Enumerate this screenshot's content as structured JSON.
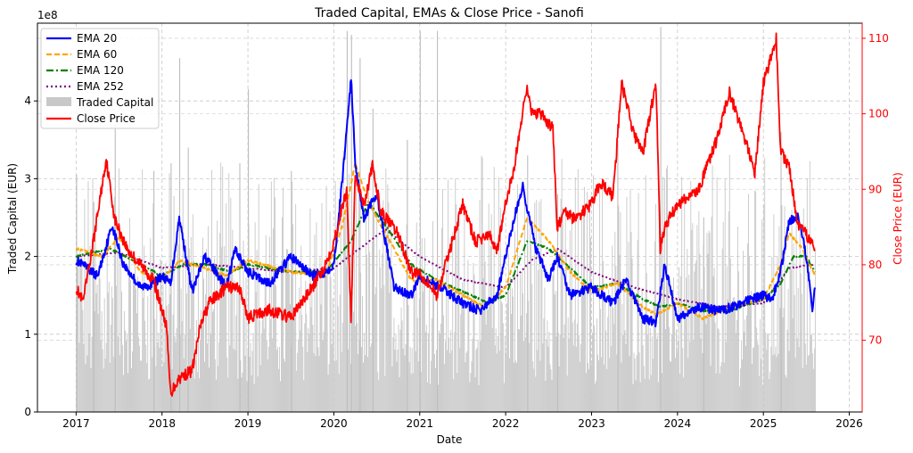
{
  "chart_data": {
    "type": "line",
    "title": "Traded Capital, EMAs & Close Price - Sanofi",
    "xlabel": "Date",
    "ylabel_left": "Traded Capital (EUR)",
    "ylabel_right": "Close Price (EUR)",
    "left_scale_label": "1e8",
    "x_range": [
      2016.55,
      2026.15
    ],
    "left_ylim": [
      0,
      5.0
    ],
    "right_ylim": [
      60.5,
      112
    ],
    "x_ticks": [
      {
        "v": 2017,
        "label": "2017"
      },
      {
        "v": 2018,
        "label": "2018"
      },
      {
        "v": 2019,
        "label": "2019"
      },
      {
        "v": 2020,
        "label": "2020"
      },
      {
        "v": 2021,
        "label": "2021"
      },
      {
        "v": 2022,
        "label": "2022"
      },
      {
        "v": 2023,
        "label": "2023"
      },
      {
        "v": 2024,
        "label": "2024"
      },
      {
        "v": 2025,
        "label": "2025"
      },
      {
        "v": 2026,
        "label": "2026"
      }
    ],
    "left_ticks": [
      {
        "v": 0,
        "label": "0"
      },
      {
        "v": 1,
        "label": "1"
      },
      {
        "v": 2,
        "label": "2"
      },
      {
        "v": 3,
        "label": "3"
      },
      {
        "v": 4,
        "label": "4"
      }
    ],
    "right_ticks": [
      {
        "v": 70,
        "label": "70"
      },
      {
        "v": 80,
        "label": "80"
      },
      {
        "v": 90,
        "label": "90"
      },
      {
        "v": 100,
        "label": "100"
      },
      {
        "v": 110,
        "label": "110"
      }
    ],
    "grid": true,
    "legend_position": "top-left",
    "colors": {
      "ema20": "#0000ff",
      "ema60": "#ffa500",
      "ema120": "#008000",
      "ema252": "#800080",
      "traded": "#c8c8c8",
      "close": "#ff0000",
      "right_axis": "#ff0000"
    },
    "series": [
      {
        "key": "ema20",
        "name": "EMA 20",
        "axis": "left",
        "style": "solid",
        "x": [
          2017.0,
          2017.25,
          2017.42,
          2017.55,
          2017.75,
          2017.9,
          2018.0,
          2018.1,
          2018.2,
          2018.35,
          2018.5,
          2018.75,
          2018.85,
          2019.0,
          2019.25,
          2019.5,
          2019.75,
          2019.9,
          2020.0,
          2020.1,
          2020.2,
          2020.25,
          2020.35,
          2020.5,
          2020.7,
          2020.9,
          2021.0,
          2021.25,
          2021.5,
          2021.7,
          2021.9,
          2022.0,
          2022.1,
          2022.2,
          2022.35,
          2022.5,
          2022.6,
          2022.75,
          2023.0,
          2023.25,
          2023.4,
          2023.6,
          2023.75,
          2023.85,
          2024.0,
          2024.25,
          2024.5,
          2024.75,
          2025.0,
          2025.1,
          2025.2,
          2025.3,
          2025.4,
          2025.5,
          2025.57,
          2025.6
        ],
        "y": [
          1.95,
          1.75,
          2.4,
          1.9,
          1.6,
          1.65,
          1.75,
          1.65,
          2.5,
          1.55,
          2.0,
          1.6,
          2.1,
          1.8,
          1.65,
          2.0,
          1.75,
          1.8,
          1.9,
          3.0,
          4.3,
          3.2,
          2.5,
          2.8,
          1.6,
          1.5,
          1.75,
          1.6,
          1.4,
          1.3,
          1.5,
          2.0,
          2.5,
          2.9,
          2.1,
          1.7,
          2.0,
          1.5,
          1.6,
          1.4,
          1.7,
          1.2,
          1.15,
          1.9,
          1.2,
          1.35,
          1.3,
          1.4,
          1.5,
          1.45,
          1.8,
          2.45,
          2.5,
          2.0,
          1.3,
          1.6
        ]
      },
      {
        "key": "ema60",
        "name": "EMA 60",
        "axis": "left",
        "style": "dashed",
        "x": [
          2017.0,
          2017.3,
          2017.5,
          2017.75,
          2018.0,
          2018.2,
          2018.5,
          2018.75,
          2019.0,
          2019.5,
          2019.9,
          2020.1,
          2020.25,
          2020.4,
          2020.6,
          2020.9,
          2021.2,
          2021.5,
          2021.75,
          2022.0,
          2022.25,
          2022.5,
          2022.75,
          2023.0,
          2023.3,
          2023.6,
          2023.75,
          2024.0,
          2024.3,
          2024.6,
          2025.0,
          2025.2,
          2025.3,
          2025.45,
          2025.6
        ],
        "y": [
          2.1,
          2.0,
          2.25,
          1.8,
          1.7,
          1.95,
          1.85,
          1.75,
          1.95,
          1.8,
          1.75,
          2.4,
          3.2,
          2.7,
          2.3,
          1.7,
          1.7,
          1.5,
          1.35,
          1.6,
          2.5,
          2.2,
          1.8,
          1.55,
          1.65,
          1.35,
          1.25,
          1.4,
          1.2,
          1.35,
          1.45,
          1.9,
          2.3,
          2.1,
          1.75
        ]
      },
      {
        "key": "ema120",
        "name": "EMA 120",
        "axis": "left",
        "style": "dashdot",
        "x": [
          2017.0,
          2017.4,
          2017.75,
          2018.0,
          2018.25,
          2018.5,
          2018.8,
          2019.0,
          2019.5,
          2019.9,
          2020.2,
          2020.4,
          2020.6,
          2020.9,
          2021.2,
          2021.5,
          2021.8,
          2022.0,
          2022.25,
          2022.5,
          2022.75,
          2023.0,
          2023.3,
          2023.6,
          2023.8,
          2024.0,
          2024.3,
          2024.6,
          2025.0,
          2025.2,
          2025.35,
          2025.5,
          2025.6
        ],
        "y": [
          2.0,
          2.1,
          1.9,
          1.75,
          1.9,
          1.9,
          1.8,
          1.9,
          1.8,
          1.8,
          2.2,
          2.7,
          2.4,
          1.9,
          1.7,
          1.55,
          1.4,
          1.5,
          2.2,
          2.1,
          1.85,
          1.6,
          1.65,
          1.45,
          1.35,
          1.4,
          1.3,
          1.3,
          1.45,
          1.65,
          2.0,
          2.0,
          1.8
        ]
      },
      {
        "key": "ema252",
        "name": "EMA 252",
        "axis": "left",
        "style": "dotted",
        "x": [
          2017.0,
          2017.5,
          2018.0,
          2018.5,
          2019.0,
          2019.5,
          2020.0,
          2020.3,
          2020.6,
          2021.0,
          2021.5,
          2022.0,
          2022.3,
          2022.6,
          2023.0,
          2023.5,
          2024.0,
          2024.5,
          2025.0,
          2025.3,
          2025.6
        ],
        "y": [
          2.0,
          2.05,
          1.85,
          1.9,
          1.85,
          1.8,
          1.85,
          2.1,
          2.35,
          2.0,
          1.7,
          1.6,
          1.95,
          2.1,
          1.8,
          1.6,
          1.45,
          1.35,
          1.4,
          1.85,
          1.9
        ]
      },
      {
        "key": "close",
        "name": "Close Price",
        "axis": "right",
        "style": "solid",
        "x": [
          2017.0,
          2017.08,
          2017.2,
          2017.35,
          2017.45,
          2017.6,
          2017.75,
          2017.9,
          2018.0,
          2018.05,
          2018.1,
          2018.2,
          2018.35,
          2018.45,
          2018.55,
          2018.75,
          2018.9,
          2019.0,
          2019.25,
          2019.5,
          2019.75,
          2019.9,
          2020.0,
          2020.15,
          2020.2,
          2020.25,
          2020.35,
          2020.45,
          2020.55,
          2020.75,
          2020.9,
          2021.0,
          2021.2,
          2021.5,
          2021.65,
          2021.8,
          2021.9,
          2022.0,
          2022.1,
          2022.25,
          2022.3,
          2022.4,
          2022.55,
          2022.6,
          2022.7,
          2022.8,
          2023.0,
          2023.1,
          2023.25,
          2023.35,
          2023.5,
          2023.6,
          2023.75,
          2023.8,
          2023.85,
          2024.0,
          2024.25,
          2024.5,
          2024.6,
          2024.75,
          2024.9,
          2025.0,
          2025.15,
          2025.2,
          2025.3,
          2025.4,
          2025.5,
          2025.6
        ],
        "y": [
          77,
          75,
          83,
          94,
          86,
          82,
          80,
          78,
          74,
          72,
          63,
          65,
          66,
          72,
          75,
          77,
          77,
          73,
          74,
          73,
          77,
          80,
          83,
          90,
          73,
          92,
          88,
          93,
          87,
          84,
          79,
          79,
          76,
          88,
          83,
          84,
          82,
          88,
          93,
          104,
          100,
          100,
          98,
          85,
          87,
          86,
          88,
          91,
          89,
          104,
          97,
          95,
          104,
          82,
          85,
          88,
          90,
          98,
          103,
          98,
          92,
          104,
          110,
          95,
          93,
          85,
          84,
          82
        ]
      },
      {
        "key": "traded",
        "name": "Traded Capital",
        "axis": "left",
        "style": "bar"
      }
    ],
    "traded_capital": {
      "base": 1.6,
      "spikes": [
        {
          "x": 2017.0,
          "y": 3.05
        },
        {
          "x": 2017.2,
          "y": 2.7
        },
        {
          "x": 2017.45,
          "y": 3.7
        },
        {
          "x": 2017.9,
          "y": 3.1
        },
        {
          "x": 2018.1,
          "y": 3.2
        },
        {
          "x": 2018.2,
          "y": 4.55
        },
        {
          "x": 2018.3,
          "y": 3.4
        },
        {
          "x": 2018.9,
          "y": 3.2
        },
        {
          "x": 2019.0,
          "y": 4.15
        },
        {
          "x": 2019.5,
          "y": 3.1
        },
        {
          "x": 2020.15,
          "y": 4.9
        },
        {
          "x": 2020.2,
          "y": 4.85
        },
        {
          "x": 2020.3,
          "y": 4.55
        },
        {
          "x": 2020.45,
          "y": 3.9
        },
        {
          "x": 2020.85,
          "y": 3.5
        },
        {
          "x": 2021.0,
          "y": 4.9
        },
        {
          "x": 2021.2,
          "y": 4.9
        },
        {
          "x": 2022.25,
          "y": 3.3
        },
        {
          "x": 2022.6,
          "y": 2.8
        },
        {
          "x": 2023.3,
          "y": 3.5
        },
        {
          "x": 2023.8,
          "y": 4.95
        },
        {
          "x": 2024.3,
          "y": 2.5
        },
        {
          "x": 2025.2,
          "y": 3.6
        }
      ]
    }
  }
}
